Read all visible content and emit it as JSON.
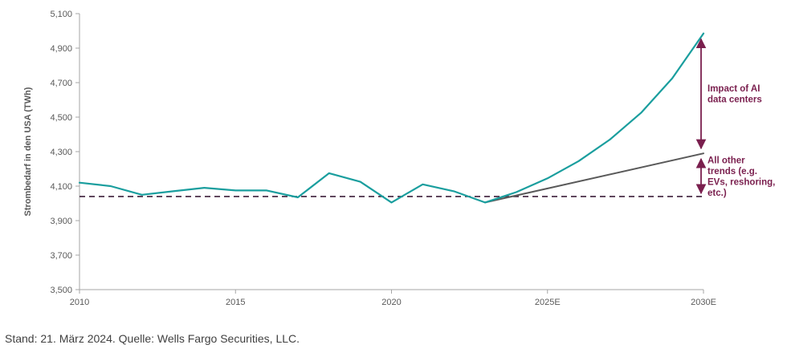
{
  "chart_data": {
    "type": "line",
    "title": "",
    "xlabel": "",
    "ylabel": "Strombedarf in den USA (TWh)",
    "ylim": [
      3500,
      5100
    ],
    "xlim": [
      2010,
      2030
    ],
    "x_tick_labels": [
      {
        "x": 2010,
        "label": "2010"
      },
      {
        "x": 2015,
        "label": "2015"
      },
      {
        "x": 2020,
        "label": "2020"
      },
      {
        "x": 2025,
        "label": "2025E"
      },
      {
        "x": 2030,
        "label": "2030E"
      }
    ],
    "y_tick_labels": [
      "3,500",
      "3,700",
      "3,900",
      "4,100",
      "4,300",
      "4,500",
      "4,700",
      "4,900",
      "5,100"
    ],
    "y_tick_values": [
      3500,
      3700,
      3900,
      4100,
      4300,
      4500,
      4700,
      4900,
      5100
    ],
    "grid": false,
    "series": [
      {
        "color": "#1a9e9e",
        "x": [
          2010,
          2011,
          2012,
          2013,
          2014,
          2015,
          2016,
          2017,
          2018,
          2019,
          2020,
          2021,
          2022,
          2023,
          2024,
          2025,
          2026,
          2027,
          2028,
          2029,
          2030
        ],
        "values": [
          4120,
          4100,
          4050,
          4070,
          4090,
          4075,
          4075,
          4035,
          4175,
          4125,
          4005,
          4110,
          4070,
          4005,
          4065,
          4145,
          4245,
          4370,
          4525,
          4725,
          4985
        ]
      },
      {
        "color": "#595959",
        "x": [
          2023,
          2030
        ],
        "values": [
          4005,
          4290
        ]
      }
    ],
    "reference_line": {
      "value": 4040,
      "style": "dashed",
      "color": "#3d1f3a"
    },
    "annotations": [
      {
        "lines": [
          "Impact of AI",
          "data centers"
        ],
        "from": 4300,
        "to": 4985,
        "x": 2030
      },
      {
        "lines": [
          "All other",
          "trends (e.g.",
          "EVs, reshoring,",
          "etc.)"
        ],
        "from": 4040,
        "to": 4290,
        "x": 2030
      }
    ],
    "annotation_color": "#7a1f4e"
  },
  "footer": "Stand: 21. März 2024. Quelle: Wells Fargo Securities, LLC."
}
